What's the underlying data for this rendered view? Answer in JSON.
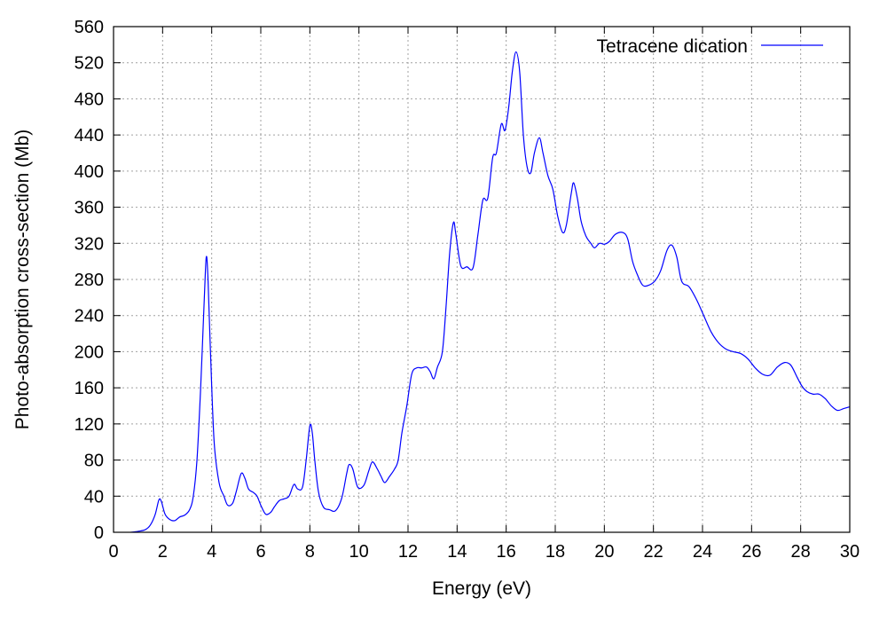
{
  "chart_data": {
    "type": "line",
    "title": "",
    "xlabel": "Energy (eV)",
    "ylabel": "Photo-absorption cross-section (Mb)",
    "xlim": [
      0,
      30
    ],
    "ylim": [
      0,
      560
    ],
    "xticks": [
      0,
      2,
      4,
      6,
      8,
      10,
      12,
      14,
      16,
      18,
      20,
      22,
      24,
      26,
      28,
      30
    ],
    "yticks": [
      0,
      40,
      80,
      120,
      160,
      200,
      240,
      280,
      320,
      360,
      400,
      440,
      480,
      520,
      560
    ],
    "grid": true,
    "legend_position": "top-right",
    "series": [
      {
        "name": "Tetracene dication",
        "color": "#0000ff",
        "points": [
          [
            0.7,
            0
          ],
          [
            1.0,
            1
          ],
          [
            1.3,
            3
          ],
          [
            1.5,
            8
          ],
          [
            1.7,
            20
          ],
          [
            1.85,
            36
          ],
          [
            1.95,
            34
          ],
          [
            2.1,
            20
          ],
          [
            2.3,
            14
          ],
          [
            2.5,
            13
          ],
          [
            2.7,
            17
          ],
          [
            2.9,
            19
          ],
          [
            3.1,
            25
          ],
          [
            3.25,
            40
          ],
          [
            3.4,
            80
          ],
          [
            3.55,
            160
          ],
          [
            3.7,
            260
          ],
          [
            3.78,
            305
          ],
          [
            3.85,
            280
          ],
          [
            3.95,
            200
          ],
          [
            4.1,
            100
          ],
          [
            4.3,
            55
          ],
          [
            4.5,
            40
          ],
          [
            4.65,
            30
          ],
          [
            4.85,
            32
          ],
          [
            5.0,
            45
          ],
          [
            5.2,
            65
          ],
          [
            5.35,
            60
          ],
          [
            5.5,
            48
          ],
          [
            5.7,
            44
          ],
          [
            5.85,
            40
          ],
          [
            6.0,
            30
          ],
          [
            6.2,
            20
          ],
          [
            6.4,
            22
          ],
          [
            6.55,
            28
          ],
          [
            6.75,
            35
          ],
          [
            6.95,
            37
          ],
          [
            7.15,
            40
          ],
          [
            7.35,
            53
          ],
          [
            7.5,
            48
          ],
          [
            7.7,
            50
          ],
          [
            7.85,
            80
          ],
          [
            8.0,
            118
          ],
          [
            8.1,
            110
          ],
          [
            8.2,
            80
          ],
          [
            8.35,
            45
          ],
          [
            8.55,
            28
          ],
          [
            8.8,
            25
          ],
          [
            9.05,
            24
          ],
          [
            9.3,
            38
          ],
          [
            9.5,
            65
          ],
          [
            9.6,
            75
          ],
          [
            9.75,
            70
          ],
          [
            9.95,
            50
          ],
          [
            10.2,
            52
          ],
          [
            10.4,
            68
          ],
          [
            10.55,
            78
          ],
          [
            10.75,
            70
          ],
          [
            10.9,
            62
          ],
          [
            11.05,
            55
          ],
          [
            11.25,
            62
          ],
          [
            11.45,
            70
          ],
          [
            11.6,
            80
          ],
          [
            11.75,
            110
          ],
          [
            11.95,
            140
          ],
          [
            12.15,
            175
          ],
          [
            12.35,
            182
          ],
          [
            12.55,
            182
          ],
          [
            12.75,
            183
          ],
          [
            12.9,
            178
          ],
          [
            13.05,
            170
          ],
          [
            13.2,
            183
          ],
          [
            13.4,
            200
          ],
          [
            13.55,
            250
          ],
          [
            13.7,
            310
          ],
          [
            13.85,
            343
          ],
          [
            13.95,
            330
          ],
          [
            14.15,
            295
          ],
          [
            14.4,
            294
          ],
          [
            14.65,
            293
          ],
          [
            14.85,
            330
          ],
          [
            15.05,
            368
          ],
          [
            15.25,
            370
          ],
          [
            15.45,
            415
          ],
          [
            15.6,
            420
          ],
          [
            15.8,
            452
          ],
          [
            15.95,
            445
          ],
          [
            16.1,
            470
          ],
          [
            16.25,
            510
          ],
          [
            16.4,
            532
          ],
          [
            16.55,
            510
          ],
          [
            16.7,
            440
          ],
          [
            16.85,
            405
          ],
          [
            17.0,
            398
          ],
          [
            17.15,
            420
          ],
          [
            17.35,
            437
          ],
          [
            17.5,
            420
          ],
          [
            17.7,
            395
          ],
          [
            17.9,
            380
          ],
          [
            18.1,
            350
          ],
          [
            18.3,
            332
          ],
          [
            18.45,
            340
          ],
          [
            18.65,
            375
          ],
          [
            18.75,
            387
          ],
          [
            18.9,
            370
          ],
          [
            19.05,
            345
          ],
          [
            19.25,
            328
          ],
          [
            19.45,
            320
          ],
          [
            19.6,
            315
          ],
          [
            19.8,
            320
          ],
          [
            20.0,
            319
          ],
          [
            20.2,
            322
          ],
          [
            20.45,
            330
          ],
          [
            20.75,
            332
          ],
          [
            20.95,
            325
          ],
          [
            21.15,
            300
          ],
          [
            21.35,
            285
          ],
          [
            21.55,
            274
          ],
          [
            21.75,
            273
          ],
          [
            22.05,
            278
          ],
          [
            22.3,
            290
          ],
          [
            22.55,
            312
          ],
          [
            22.75,
            318
          ],
          [
            22.95,
            305
          ],
          [
            23.15,
            278
          ],
          [
            23.45,
            272
          ],
          [
            23.75,
            258
          ],
          [
            24.05,
            240
          ],
          [
            24.35,
            222
          ],
          [
            24.65,
            210
          ],
          [
            24.95,
            203
          ],
          [
            25.25,
            200
          ],
          [
            25.55,
            198
          ],
          [
            25.85,
            192
          ],
          [
            26.15,
            182
          ],
          [
            26.45,
            175
          ],
          [
            26.75,
            174
          ],
          [
            27.05,
            183
          ],
          [
            27.35,
            188
          ],
          [
            27.6,
            185
          ],
          [
            27.85,
            172
          ],
          [
            28.05,
            162
          ],
          [
            28.25,
            156
          ],
          [
            28.5,
            153
          ],
          [
            28.75,
            153
          ],
          [
            29.0,
            148
          ],
          [
            29.25,
            140
          ],
          [
            29.5,
            135
          ],
          [
            29.75,
            137
          ],
          [
            30.0,
            139
          ]
        ]
      }
    ]
  }
}
